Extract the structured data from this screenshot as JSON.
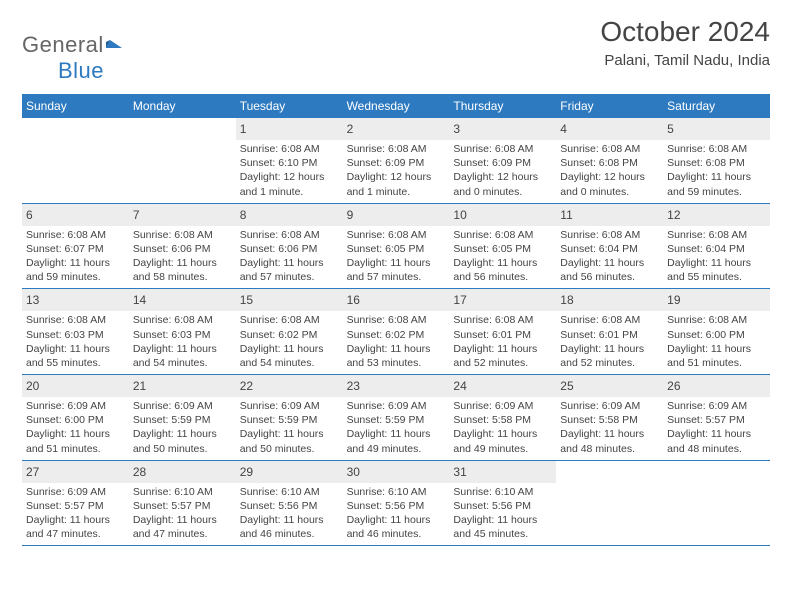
{
  "logo": {
    "text1": "General",
    "text2": "Blue",
    "icon_color": "#2d7ac0"
  },
  "title": "October 2024",
  "location": "Palani, Tamil Nadu, India",
  "header_bg": "#2d7ac0",
  "header_fg": "#ffffff",
  "daynum_bg": "#ededed",
  "border_color": "#2d7ac0",
  "day_labels": [
    "Sunday",
    "Monday",
    "Tuesday",
    "Wednesday",
    "Thursday",
    "Friday",
    "Saturday"
  ],
  "weeks": [
    [
      null,
      null,
      {
        "n": "1",
        "sr": "Sunrise: 6:08 AM",
        "ss": "Sunset: 6:10 PM",
        "dl": "Daylight: 12 hours and 1 minute."
      },
      {
        "n": "2",
        "sr": "Sunrise: 6:08 AM",
        "ss": "Sunset: 6:09 PM",
        "dl": "Daylight: 12 hours and 1 minute."
      },
      {
        "n": "3",
        "sr": "Sunrise: 6:08 AM",
        "ss": "Sunset: 6:09 PM",
        "dl": "Daylight: 12 hours and 0 minutes."
      },
      {
        "n": "4",
        "sr": "Sunrise: 6:08 AM",
        "ss": "Sunset: 6:08 PM",
        "dl": "Daylight: 12 hours and 0 minutes."
      },
      {
        "n": "5",
        "sr": "Sunrise: 6:08 AM",
        "ss": "Sunset: 6:08 PM",
        "dl": "Daylight: 11 hours and 59 minutes."
      }
    ],
    [
      {
        "n": "6",
        "sr": "Sunrise: 6:08 AM",
        "ss": "Sunset: 6:07 PM",
        "dl": "Daylight: 11 hours and 59 minutes."
      },
      {
        "n": "7",
        "sr": "Sunrise: 6:08 AM",
        "ss": "Sunset: 6:06 PM",
        "dl": "Daylight: 11 hours and 58 minutes."
      },
      {
        "n": "8",
        "sr": "Sunrise: 6:08 AM",
        "ss": "Sunset: 6:06 PM",
        "dl": "Daylight: 11 hours and 57 minutes."
      },
      {
        "n": "9",
        "sr": "Sunrise: 6:08 AM",
        "ss": "Sunset: 6:05 PM",
        "dl": "Daylight: 11 hours and 57 minutes."
      },
      {
        "n": "10",
        "sr": "Sunrise: 6:08 AM",
        "ss": "Sunset: 6:05 PM",
        "dl": "Daylight: 11 hours and 56 minutes."
      },
      {
        "n": "11",
        "sr": "Sunrise: 6:08 AM",
        "ss": "Sunset: 6:04 PM",
        "dl": "Daylight: 11 hours and 56 minutes."
      },
      {
        "n": "12",
        "sr": "Sunrise: 6:08 AM",
        "ss": "Sunset: 6:04 PM",
        "dl": "Daylight: 11 hours and 55 minutes."
      }
    ],
    [
      {
        "n": "13",
        "sr": "Sunrise: 6:08 AM",
        "ss": "Sunset: 6:03 PM",
        "dl": "Daylight: 11 hours and 55 minutes."
      },
      {
        "n": "14",
        "sr": "Sunrise: 6:08 AM",
        "ss": "Sunset: 6:03 PM",
        "dl": "Daylight: 11 hours and 54 minutes."
      },
      {
        "n": "15",
        "sr": "Sunrise: 6:08 AM",
        "ss": "Sunset: 6:02 PM",
        "dl": "Daylight: 11 hours and 54 minutes."
      },
      {
        "n": "16",
        "sr": "Sunrise: 6:08 AM",
        "ss": "Sunset: 6:02 PM",
        "dl": "Daylight: 11 hours and 53 minutes."
      },
      {
        "n": "17",
        "sr": "Sunrise: 6:08 AM",
        "ss": "Sunset: 6:01 PM",
        "dl": "Daylight: 11 hours and 52 minutes."
      },
      {
        "n": "18",
        "sr": "Sunrise: 6:08 AM",
        "ss": "Sunset: 6:01 PM",
        "dl": "Daylight: 11 hours and 52 minutes."
      },
      {
        "n": "19",
        "sr": "Sunrise: 6:08 AM",
        "ss": "Sunset: 6:00 PM",
        "dl": "Daylight: 11 hours and 51 minutes."
      }
    ],
    [
      {
        "n": "20",
        "sr": "Sunrise: 6:09 AM",
        "ss": "Sunset: 6:00 PM",
        "dl": "Daylight: 11 hours and 51 minutes."
      },
      {
        "n": "21",
        "sr": "Sunrise: 6:09 AM",
        "ss": "Sunset: 5:59 PM",
        "dl": "Daylight: 11 hours and 50 minutes."
      },
      {
        "n": "22",
        "sr": "Sunrise: 6:09 AM",
        "ss": "Sunset: 5:59 PM",
        "dl": "Daylight: 11 hours and 50 minutes."
      },
      {
        "n": "23",
        "sr": "Sunrise: 6:09 AM",
        "ss": "Sunset: 5:59 PM",
        "dl": "Daylight: 11 hours and 49 minutes."
      },
      {
        "n": "24",
        "sr": "Sunrise: 6:09 AM",
        "ss": "Sunset: 5:58 PM",
        "dl": "Daylight: 11 hours and 49 minutes."
      },
      {
        "n": "25",
        "sr": "Sunrise: 6:09 AM",
        "ss": "Sunset: 5:58 PM",
        "dl": "Daylight: 11 hours and 48 minutes."
      },
      {
        "n": "26",
        "sr": "Sunrise: 6:09 AM",
        "ss": "Sunset: 5:57 PM",
        "dl": "Daylight: 11 hours and 48 minutes."
      }
    ],
    [
      {
        "n": "27",
        "sr": "Sunrise: 6:09 AM",
        "ss": "Sunset: 5:57 PM",
        "dl": "Daylight: 11 hours and 47 minutes."
      },
      {
        "n": "28",
        "sr": "Sunrise: 6:10 AM",
        "ss": "Sunset: 5:57 PM",
        "dl": "Daylight: 11 hours and 47 minutes."
      },
      {
        "n": "29",
        "sr": "Sunrise: 6:10 AM",
        "ss": "Sunset: 5:56 PM",
        "dl": "Daylight: 11 hours and 46 minutes."
      },
      {
        "n": "30",
        "sr": "Sunrise: 6:10 AM",
        "ss": "Sunset: 5:56 PM",
        "dl": "Daylight: 11 hours and 46 minutes."
      },
      {
        "n": "31",
        "sr": "Sunrise: 6:10 AM",
        "ss": "Sunset: 5:56 PM",
        "dl": "Daylight: 11 hours and 45 minutes."
      },
      null,
      null
    ]
  ]
}
